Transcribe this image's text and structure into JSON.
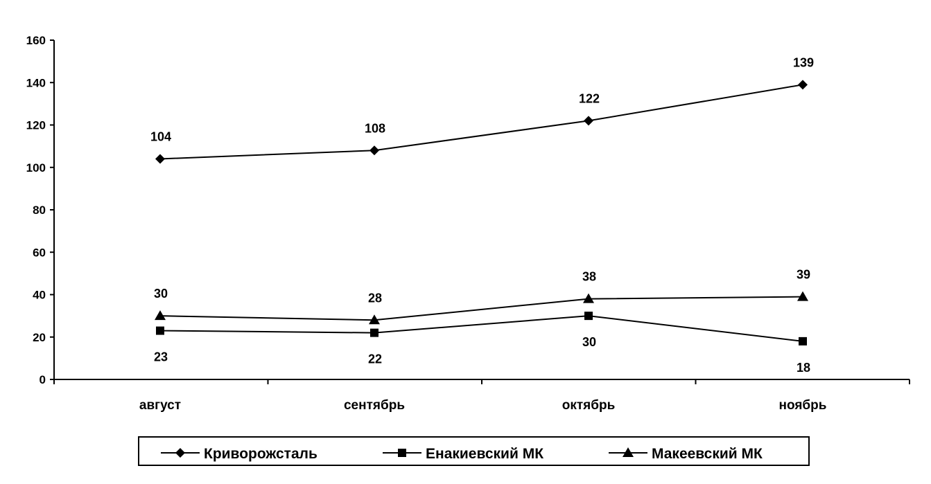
{
  "chart_data": {
    "type": "line",
    "title": "",
    "xlabel": "",
    "ylabel": "",
    "categories": [
      "август",
      "сентябрь",
      "октябрь",
      "ноябрь"
    ],
    "ylim": [
      0,
      160
    ],
    "yticks": [
      0,
      20,
      40,
      60,
      80,
      100,
      120,
      140,
      160
    ],
    "grid": false,
    "legend_position": "bottom",
    "series": [
      {
        "name": "Криворожсталь",
        "marker": "diamond",
        "values": [
          104,
          108,
          122,
          139
        ],
        "label_position": "above"
      },
      {
        "name": "Енакиевский МК",
        "marker": "square",
        "values": [
          23,
          22,
          30,
          18
        ],
        "label_position": "below"
      },
      {
        "name": "Макеевский МК",
        "marker": "triangle",
        "values": [
          30,
          28,
          38,
          39
        ],
        "label_position": "above"
      }
    ]
  }
}
